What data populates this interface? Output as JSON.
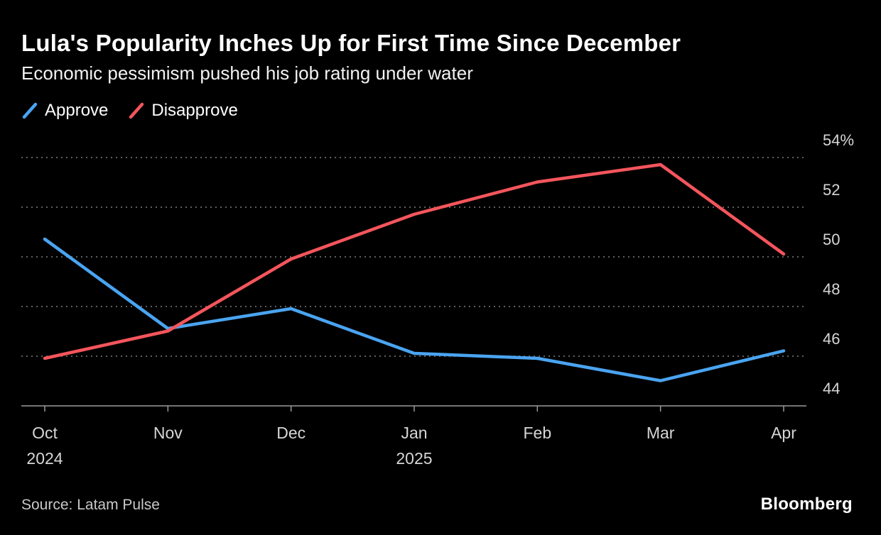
{
  "header": {
    "title": "Lula's Popularity Inches Up for First Time Since December",
    "subtitle": "Economic pessimism pushed his job rating under water"
  },
  "legend": [
    {
      "label": "Approve",
      "color": "#4aa4f1"
    },
    {
      "label": "Disapprove",
      "color": "#f4555c"
    }
  ],
  "footer": {
    "source": "Source: Latam Pulse",
    "brand": "Bloomberg"
  },
  "chart_data": {
    "type": "line",
    "title": "Lula's Popularity Inches Up for First Time Since December",
    "subtitle": "Economic pessimism pushed his job rating under water",
    "x": [
      "Oct 2024",
      "Nov",
      "Dec",
      "Jan 2025",
      "Feb",
      "Mar",
      "Apr"
    ],
    "x_ticks": [
      {
        "top": "Oct",
        "bottom": "2024"
      },
      {
        "top": "Nov",
        "bottom": ""
      },
      {
        "top": "Dec",
        "bottom": ""
      },
      {
        "top": "Jan",
        "bottom": "2025"
      },
      {
        "top": "Feb",
        "bottom": ""
      },
      {
        "top": "Mar",
        "bottom": ""
      },
      {
        "top": "Apr",
        "bottom": ""
      }
    ],
    "series": [
      {
        "name": "Approve",
        "color": "#4aa4f1",
        "values": [
          50.0,
          46.4,
          47.2,
          45.4,
          45.2,
          44.3,
          45.5
        ]
      },
      {
        "name": "Disapprove",
        "color": "#f4555c",
        "values": [
          45.2,
          46.3,
          49.2,
          51.0,
          52.3,
          53.0,
          49.4
        ]
      }
    ],
    "ylabel": "",
    "xlabel": "",
    "ylim": [
      43.3,
      54.7
    ],
    "yticks": [
      44,
      46,
      48,
      50,
      52,
      54
    ],
    "ytick_labels": [
      "44",
      "46",
      "48",
      "50",
      "52",
      "54%"
    ],
    "grid": "horizontal-dashed",
    "legend_position": "top-left"
  }
}
